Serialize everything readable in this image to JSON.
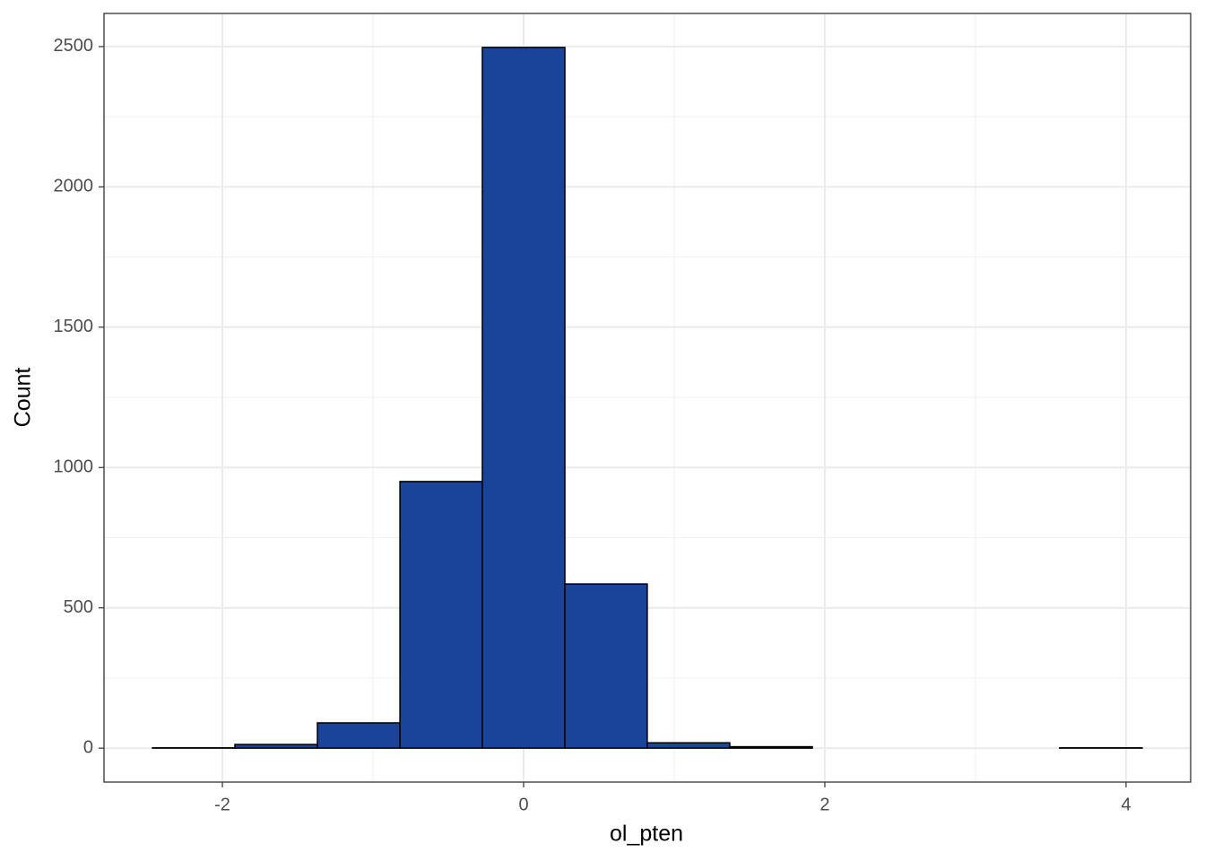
{
  "chart_data": {
    "type": "histogram",
    "x_label": "ol_pten",
    "y_label": "Count",
    "bins": [
      -2.464,
      -1.917,
      -1.369,
      -0.821,
      -0.274,
      0.274,
      0.821,
      1.369,
      1.917,
      2.464,
      3.012,
      3.559,
      4.107
    ],
    "values": [
      1,
      13,
      90,
      950,
      2497,
      585,
      19,
      5,
      0,
      0,
      0,
      1
    ],
    "color": "#19449a",
    "xlim": [
      -2.786,
      4.429
    ],
    "ylim": [
      -121,
      2618
    ],
    "xticks": [
      -2,
      0,
      2,
      4
    ],
    "yticks": [
      0,
      500,
      1000,
      1500,
      2000,
      2500
    ],
    "grid": true
  }
}
